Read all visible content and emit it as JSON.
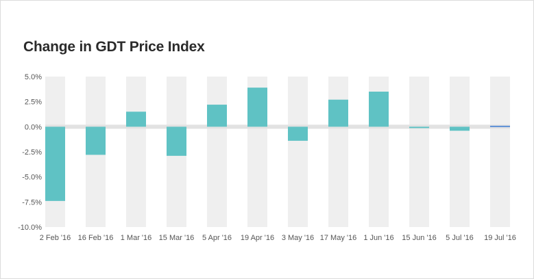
{
  "chart_data": {
    "type": "bar",
    "title": "Change in GDT Price Index",
    "xlabel": "",
    "ylabel": "",
    "categories": [
      "2 Feb '16",
      "16 Feb '16",
      "1 Mar '16",
      "15 Mar '16",
      "5 Apr '16",
      "19 Apr '16",
      "3 May '16",
      "17 May '16",
      "1 Jun '16",
      "15 Jun '16",
      "5 Jul '16",
      "19 Jul '16"
    ],
    "values": [
      -7.4,
      -2.8,
      1.5,
      -2.9,
      2.2,
      3.9,
      -1.4,
      2.7,
      3.5,
      -0.1,
      -0.4,
      0.1
    ],
    "ylim": [
      -10,
      5
    ],
    "yticks": [
      "5.0%",
      "2.5%",
      "0.0%",
      "-2.5%",
      "-5.0%",
      "-7.5%",
      "-10.0%"
    ],
    "ytick_values": [
      5,
      2.5,
      0,
      -2.5,
      -5,
      -7.5,
      -10
    ],
    "grid": false,
    "legend": "none",
    "colors": {
      "bar": "#5fc2c4",
      "bar_last": "#5b8fd6",
      "band": "#efefef",
      "zero_band": "#e2e2e2",
      "title": "#2b2b2b",
      "tick": "#555555"
    }
  }
}
